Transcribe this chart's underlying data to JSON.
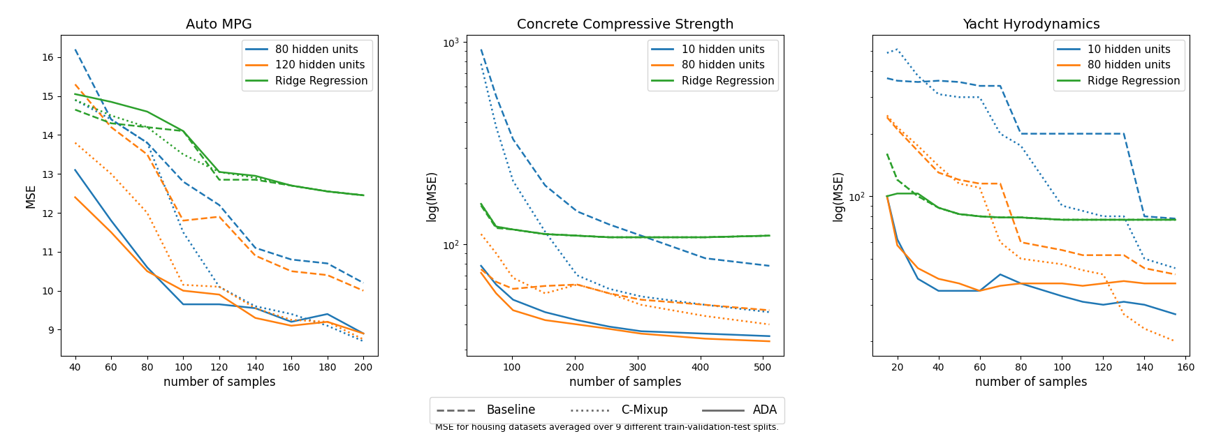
{
  "auto_mpg": {
    "title": "Auto MPG",
    "xlabel": "number of samples",
    "ylabel": "MSE",
    "x": [
      40,
      60,
      80,
      100,
      120,
      140,
      160,
      180,
      200
    ],
    "blue_baseline": [
      16.2,
      14.4,
      13.8,
      12.8,
      12.2,
      11.1,
      10.8,
      10.7,
      10.2
    ],
    "blue_cmixup": [
      14.9,
      14.4,
      13.8,
      11.5,
      10.1,
      9.6,
      9.4,
      9.1,
      8.7
    ],
    "blue_ada": [
      13.1,
      11.8,
      10.6,
      9.65,
      9.65,
      9.55,
      9.2,
      9.4,
      8.9
    ],
    "orange_baseline": [
      15.3,
      14.2,
      13.5,
      11.8,
      11.9,
      10.9,
      10.5,
      10.4,
      10.0
    ],
    "orange_cmixup": [
      13.8,
      13.0,
      12.0,
      10.15,
      10.1,
      9.55,
      9.25,
      9.2,
      8.75
    ],
    "orange_ada": [
      12.4,
      11.5,
      10.5,
      10.0,
      9.9,
      9.3,
      9.1,
      9.2,
      8.9
    ],
    "green_baseline": [
      14.65,
      14.3,
      14.2,
      14.1,
      12.85,
      12.85,
      12.7,
      12.55,
      12.45
    ],
    "green_cmixup": [
      14.9,
      14.5,
      14.2,
      13.5,
      13.05,
      12.9,
      12.7,
      12.55,
      12.45
    ],
    "green_ada": [
      15.05,
      14.85,
      14.6,
      14.1,
      13.05,
      12.95,
      12.7,
      12.55,
      12.45
    ],
    "ylim": [
      8.5,
      16.5
    ],
    "log_scale": false
  },
  "concrete": {
    "title": "Concrete Compressive Strength",
    "xlabel": "number of samples",
    "ylabel": "log(MSE)",
    "x": [
      51,
      75,
      102,
      153,
      204,
      255,
      306,
      408,
      510
    ],
    "blue_baseline": [
      920,
      540,
      330,
      195,
      145,
      125,
      110,
      85,
      78
    ],
    "blue_cmixup": [
      780,
      380,
      205,
      115,
      70,
      60,
      55,
      50,
      46
    ],
    "blue_ada": [
      78,
      63,
      53,
      46,
      42,
      39,
      37,
      36,
      35
    ],
    "orange_baseline": [
      75,
      65,
      60,
      62,
      63,
      57,
      53,
      50,
      47
    ],
    "orange_cmixup": [
      112,
      90,
      68,
      57,
      63,
      57,
      50,
      44,
      40
    ],
    "orange_ada": [
      72,
      57,
      47,
      42,
      40,
      38,
      36,
      34,
      33
    ],
    "green_baseline": [
      155,
      120,
      118,
      112,
      110,
      108,
      108,
      108,
      110
    ],
    "green_cmixup": [
      158,
      122,
      118,
      112,
      110,
      108,
      108,
      108,
      110
    ],
    "green_ada": [
      158,
      122,
      118,
      112,
      110,
      108,
      108,
      108,
      110
    ],
    "ylim": [
      28,
      1200
    ],
    "log_scale": true
  },
  "yacht": {
    "title": "Yacht Hyrodynamics",
    "xlabel": "number of samples",
    "ylabel": "log(MSE)",
    "x": [
      15,
      20,
      30,
      40,
      50,
      60,
      70,
      80,
      100,
      110,
      120,
      130,
      140,
      155
    ],
    "blue_baseline": [
      370,
      360,
      355,
      360,
      355,
      340,
      340,
      200,
      200,
      200,
      200,
      200,
      80,
      78
    ],
    "blue_cmixup": [
      490,
      510,
      380,
      310,
      300,
      300,
      200,
      175,
      90,
      85,
      80,
      80,
      50,
      45
    ],
    "blue_ada": [
      100,
      62,
      40,
      35,
      35,
      35,
      42,
      38,
      33,
      31,
      30,
      31,
      30,
      27
    ],
    "orange_baseline": [
      240,
      210,
      165,
      130,
      120,
      115,
      115,
      60,
      55,
      52,
      52,
      52,
      45,
      42
    ],
    "orange_cmixup": [
      245,
      215,
      175,
      140,
      115,
      110,
      60,
      50,
      47,
      44,
      42,
      27,
      23,
      20
    ],
    "orange_ada": [
      100,
      58,
      45,
      40,
      38,
      35,
      37,
      38,
      38,
      37,
      38,
      39,
      38,
      38
    ],
    "green_baseline": [
      160,
      120,
      100,
      88,
      82,
      80,
      79,
      79,
      77,
      77,
      77,
      77,
      77,
      77
    ],
    "green_cmixup": [
      160,
      120,
      100,
      88,
      82,
      80,
      79,
      79,
      77,
      77,
      77,
      77,
      77,
      77
    ],
    "green_ada": [
      100,
      103,
      103,
      88,
      82,
      80,
      79,
      79,
      77,
      77,
      77,
      77,
      77,
      77
    ],
    "ylim": [
      18,
      700
    ],
    "log_scale": true
  },
  "colors": {
    "blue": "#1f77b4",
    "orange": "#ff7f0e",
    "green": "#2ca02c"
  },
  "legend1_auto": [
    "80 hidden units",
    "120 hidden units",
    "Ridge Regression"
  ],
  "legend1_other": [
    "10 hidden units",
    "80 hidden units",
    "Ridge Regression"
  ],
  "suptitle": "MSE for housing datasets averaged over 9 different train-validation-test splits."
}
